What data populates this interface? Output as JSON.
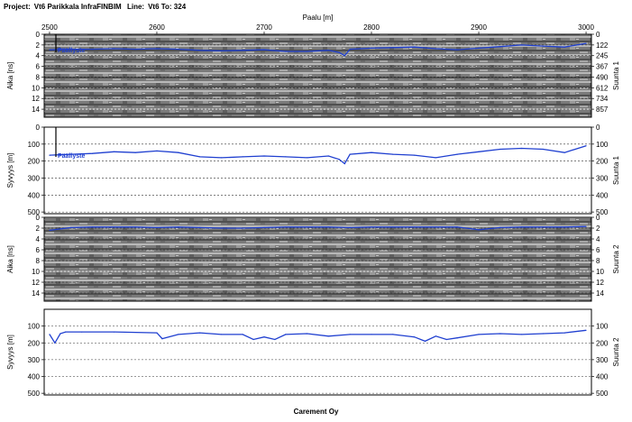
{
  "header": {
    "project_label": "Project:",
    "project_value": "Vt6 Parikkala InfraFINBIM",
    "line_label": "Line:",
    "line_value": "Vt6 To: 324"
  },
  "footer": {
    "credit": "Carement Oy"
  },
  "chart_data": [
    {
      "type": "heatmap",
      "panel": "radargram-1",
      "xlabel": "Paalu [m]",
      "ylabel_left": "Aika [ns]",
      "ylabel_right": "Suunta 1",
      "xlim": [
        2495,
        3005
      ],
      "xticks": [
        2500,
        2600,
        2700,
        2800,
        2900,
        3000
      ],
      "ylim": [
        0,
        15.5
      ],
      "yticks_left": [
        0,
        2,
        4,
        6,
        8,
        10,
        12,
        14
      ],
      "yticks_right": [
        "0",
        "122",
        "245",
        "367",
        "490",
        "612",
        "734",
        "857"
      ],
      "annotation": "Päällyste",
      "colors": {
        "line": "#1f3fd0",
        "background": "#808080"
      },
      "series": [
        {
          "name": "",
          "x": [
            2500,
            2520,
            2540,
            2560,
            2580,
            2600,
            2620,
            2640,
            2660,
            2680,
            2700,
            2720,
            2740,
            2760,
            2770,
            2775,
            2780,
            2800,
            2820,
            2840,
            2860,
            2880,
            2900,
            2920,
            2940,
            2960,
            2980,
            3000
          ],
          "y": [
            2.9,
            2.8,
            2.8,
            2.7,
            2.8,
            2.7,
            2.8,
            3.0,
            3.1,
            3.0,
            2.9,
            3.2,
            3.2,
            3.0,
            3.4,
            4.0,
            2.8,
            2.6,
            2.5,
            2.4,
            2.7,
            2.9,
            2.6,
            2.3,
            2.0,
            2.2,
            2.4,
            1.7
          ]
        }
      ]
    },
    {
      "type": "line",
      "panel": "depth-1",
      "ylabel_left": "Syvyys [m]",
      "ylabel_right": "Suunta 1",
      "xlim": [
        2495,
        3005
      ],
      "ylim": [
        0,
        510
      ],
      "yticks": [
        0,
        100,
        200,
        300,
        400,
        500
      ],
      "annotation": "Päällyste",
      "grid": true,
      "series": [
        {
          "name": "",
          "x": [
            2500,
            2520,
            2540,
            2560,
            2580,
            2600,
            2620,
            2640,
            2660,
            2680,
            2700,
            2720,
            2740,
            2760,
            2770,
            2775,
            2780,
            2800,
            2820,
            2840,
            2860,
            2880,
            2900,
            2920,
            2940,
            2960,
            2980,
            3000
          ],
          "y": [
            165,
            160,
            155,
            145,
            150,
            140,
            150,
            175,
            180,
            175,
            170,
            175,
            180,
            170,
            190,
            215,
            160,
            150,
            160,
            165,
            180,
            160,
            145,
            130,
            125,
            130,
            150,
            110
          ]
        }
      ]
    },
    {
      "type": "heatmap",
      "panel": "radargram-2",
      "ylabel_left": "Aika [ns]",
      "ylabel_right": "Suunta 2",
      "xlim": [
        2495,
        3005
      ],
      "ylim": [
        0,
        15.5
      ],
      "yticks_left": [
        0,
        2,
        4,
        6,
        8,
        10,
        12,
        14
      ],
      "yticks_right": [
        "0",
        "2",
        "4",
        "6",
        "8",
        "10",
        "12",
        "14"
      ],
      "series": [
        {
          "name": "",
          "x": [
            2500,
            2520,
            2540,
            2560,
            2580,
            2600,
            2620,
            2640,
            2660,
            2680,
            2700,
            2720,
            2740,
            2760,
            2780,
            2800,
            2820,
            2840,
            2860,
            2880,
            2900,
            2920,
            2940,
            2960,
            2980,
            3000
          ],
          "y": [
            2.4,
            1.9,
            1.8,
            1.8,
            1.8,
            1.9,
            1.8,
            1.9,
            2.0,
            2.0,
            1.9,
            1.8,
            1.8,
            1.8,
            1.9,
            1.8,
            1.8,
            1.8,
            1.8,
            1.8,
            2.3,
            1.9,
            1.8,
            1.8,
            1.8,
            1.7
          ]
        }
      ]
    },
    {
      "type": "line",
      "panel": "depth-2",
      "ylabel_left": "Syvyys [m]",
      "ylabel_right": "Suunta 2",
      "xlim": [
        2495,
        3005
      ],
      "ylim": [
        0,
        510
      ],
      "yticks": [
        100,
        200,
        300,
        400,
        500
      ],
      "grid": true,
      "series": [
        {
          "name": "",
          "x": [
            2500,
            2505,
            2510,
            2515,
            2530,
            2560,
            2600,
            2605,
            2620,
            2640,
            2660,
            2680,
            2690,
            2700,
            2710,
            2720,
            2740,
            2760,
            2780,
            2800,
            2820,
            2840,
            2850,
            2860,
            2870,
            2880,
            2900,
            2920,
            2940,
            2960,
            2980,
            3000
          ],
          "y": [
            150,
            200,
            145,
            135,
            135,
            135,
            140,
            175,
            150,
            140,
            150,
            150,
            180,
            165,
            180,
            150,
            145,
            160,
            150,
            150,
            150,
            165,
            190,
            160,
            180,
            170,
            150,
            145,
            150,
            145,
            140,
            125
          ]
        }
      ]
    }
  ]
}
